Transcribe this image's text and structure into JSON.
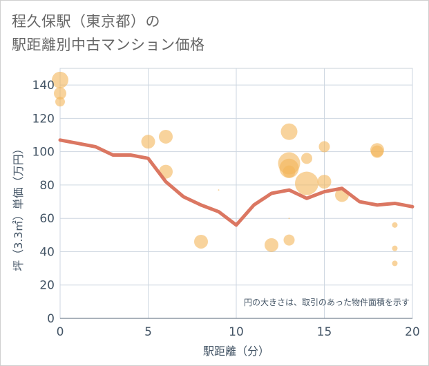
{
  "title_lines": [
    "程久保駅（東京都）の",
    "駅距離別中古マンション価格"
  ],
  "colors": {
    "line": "#d9705a",
    "bubble": "#f3b55a",
    "axis_text": "#445566",
    "grid": "#cdd6e0",
    "title": "#666666"
  },
  "chart_data": {
    "type": "scatter",
    "title": "程久保駅（東京都）の駅距離別中古マンション価格",
    "xlabel": "駅距離（分）",
    "ylabel": "坪（3.3㎡）単価（万円）",
    "xlim": [
      0,
      20
    ],
    "ylim": [
      0,
      150
    ],
    "x_ticks": [
      0,
      5,
      10,
      15,
      20
    ],
    "y_ticks": [
      0,
      20,
      40,
      60,
      80,
      100,
      120,
      140
    ],
    "grid": true,
    "annotation": "円の大きさは、取引のあった物件面積を示す",
    "series": [
      {
        "type": "line",
        "x": [
          0,
          1,
          2,
          3,
          4,
          5,
          6,
          7,
          8,
          9,
          10,
          11,
          12,
          13,
          14,
          15,
          16,
          17,
          18,
          19,
          20
        ],
        "values": [
          107,
          105,
          103,
          98,
          98,
          96,
          82,
          73,
          68,
          64,
          56,
          68,
          75,
          77,
          72,
          76,
          78,
          70,
          68,
          69,
          67
        ]
      },
      {
        "type": "scatter",
        "points": [
          {
            "x": 0,
            "y": 143,
            "size": 12
          },
          {
            "x": 0,
            "y": 135,
            "size": 9
          },
          {
            "x": 0,
            "y": 130,
            "size": 7
          },
          {
            "x": 5,
            "y": 106,
            "size": 10
          },
          {
            "x": 6,
            "y": 109,
            "size": 10
          },
          {
            "x": 6,
            "y": 88,
            "size": 10
          },
          {
            "x": 8,
            "y": 46,
            "size": 10
          },
          {
            "x": 9,
            "y": 77,
            "size": 1
          },
          {
            "x": 12,
            "y": 44,
            "size": 10
          },
          {
            "x": 13,
            "y": 112,
            "size": 12
          },
          {
            "x": 13,
            "y": 93,
            "size": 16
          },
          {
            "x": 13,
            "y": 90,
            "size": 14
          },
          {
            "x": 13,
            "y": 88,
            "size": 9
          },
          {
            "x": 13,
            "y": 47,
            "size": 8
          },
          {
            "x": 13,
            "y": 60,
            "size": 1
          },
          {
            "x": 14,
            "y": 96,
            "size": 8
          },
          {
            "x": 14,
            "y": 81,
            "size": 17
          },
          {
            "x": 15,
            "y": 103,
            "size": 8
          },
          {
            "x": 15,
            "y": 82,
            "size": 10
          },
          {
            "x": 16,
            "y": 74,
            "size": 10
          },
          {
            "x": 18,
            "y": 101,
            "size": 10
          },
          {
            "x": 18,
            "y": 100,
            "size": 9
          },
          {
            "x": 19,
            "y": 56,
            "size": 4
          },
          {
            "x": 19,
            "y": 42,
            "size": 4
          },
          {
            "x": 19,
            "y": 33,
            "size": 4
          }
        ]
      }
    ]
  }
}
